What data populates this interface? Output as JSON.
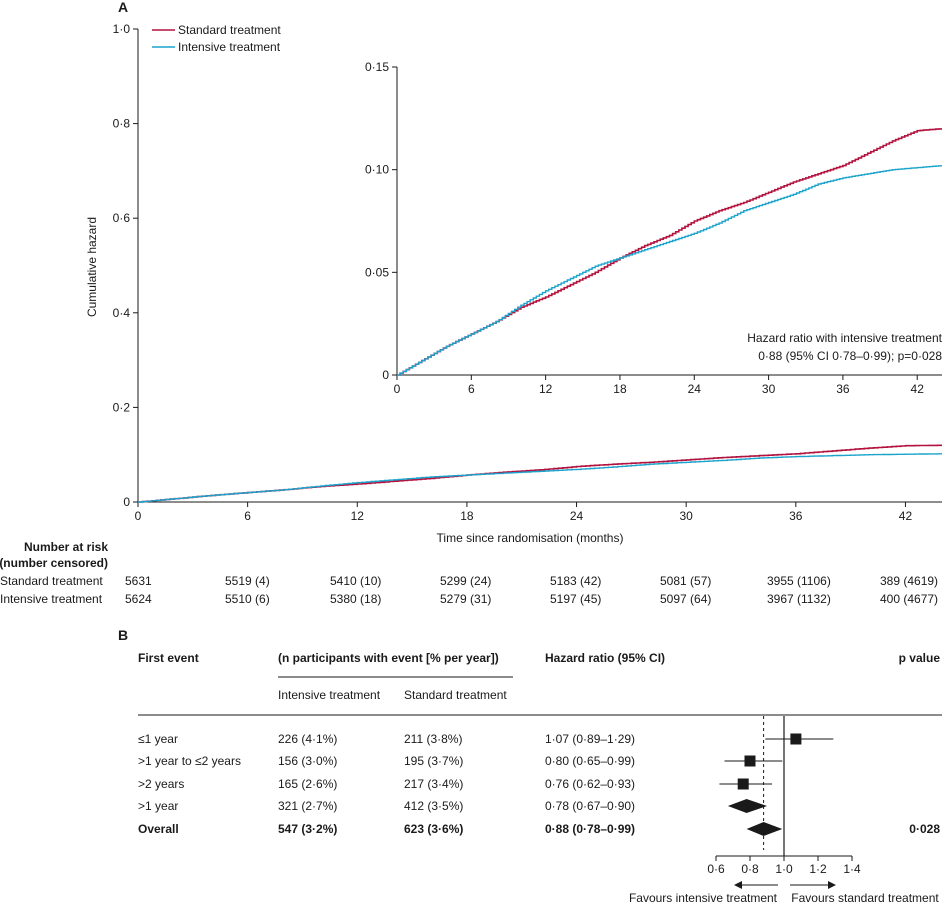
{
  "colors": {
    "standard": "#b3123f",
    "intensive": "#1ba3cc",
    "ink": "#1a1a1a"
  },
  "panel_a": {
    "label": "A",
    "legend": [
      "Standard treatment",
      "Intensive treatment"
    ],
    "inset_note": {
      "line1": "Hazard ratio with intensive treatment",
      "line2": "0·88 (95% CI 0·78–0·99); p=0·028"
    }
  },
  "risk_table": {
    "title_line1": "Number at risk",
    "title_line2": "(number censored)",
    "rows": [
      {
        "name": "Standard treatment",
        "values": [
          "5631",
          "5519 (4)",
          "5410 (10)",
          "5299 (24)",
          "5183 (42)",
          "5081 (57)",
          "3955 (1106)",
          "389 (4619)"
        ]
      },
      {
        "name": "Intensive treatment",
        "values": [
          "5624",
          "5510 (6)",
          "5380 (18)",
          "5279 (31)",
          "5197 (45)",
          "5097 (64)",
          "3967 (1132)",
          "400 (4677)"
        ]
      }
    ]
  },
  "chart_data": [
    {
      "type": "line",
      "id": "main",
      "title": "",
      "xlabel": "Time since randomisation (months)",
      "ylabel": "Cumulative hazard",
      "xlim": [
        0,
        44
      ],
      "ylim": [
        0,
        1.0
      ],
      "xticks": [
        0,
        6,
        12,
        18,
        24,
        30,
        36,
        42
      ],
      "xtick_labels": [
        "0",
        "6",
        "12",
        "18",
        "24",
        "30",
        "36",
        "42"
      ],
      "yticks": [
        0,
        0.2,
        0.4,
        0.6,
        0.8,
        1.0
      ],
      "ytick_labels": [
        "0",
        "0·2",
        "0·4",
        "0·6",
        "0·8",
        "1·0"
      ],
      "x": [
        0,
        2,
        4,
        6,
        8,
        10,
        12,
        14,
        16,
        18,
        20,
        22,
        24,
        26,
        28,
        30,
        32,
        34,
        36,
        38,
        40,
        42,
        44
      ],
      "series": [
        {
          "name": "Standard treatment",
          "values": [
            0,
            0.007,
            0.014,
            0.02,
            0.026,
            0.033,
            0.038,
            0.044,
            0.05,
            0.057,
            0.063,
            0.068,
            0.075,
            0.08,
            0.084,
            0.089,
            0.094,
            0.098,
            0.102,
            0.108,
            0.114,
            0.119,
            0.12
          ]
        },
        {
          "name": "Intensive treatment",
          "values": [
            0,
            0.007,
            0.014,
            0.02,
            0.026,
            0.034,
            0.041,
            0.047,
            0.053,
            0.057,
            0.061,
            0.065,
            0.069,
            0.074,
            0.08,
            0.084,
            0.088,
            0.093,
            0.096,
            0.098,
            0.1,
            0.101,
            0.102
          ]
        }
      ]
    },
    {
      "type": "line",
      "id": "inset",
      "xlim": [
        0,
        44
      ],
      "ylim": [
        0,
        0.15
      ],
      "xticks": [
        0,
        6,
        12,
        18,
        24,
        30,
        36,
        42
      ],
      "xtick_labels": [
        "0",
        "6",
        "12",
        "18",
        "24",
        "30",
        "36",
        "42"
      ],
      "yticks": [
        0,
        0.05,
        0.1,
        0.15
      ],
      "ytick_labels": [
        "0",
        "0·05",
        "0·10",
        "0·15"
      ],
      "note": "Zoomed view of the same two series"
    },
    {
      "type": "forest",
      "id": "forest",
      "panel_label": "B",
      "headers": {
        "first_event": "First event",
        "participants": "(n participants with event [% per year])",
        "intensive": "Intensive treatment",
        "standard": "Standard treatment",
        "hr": "Hazard ratio (95% CI)",
        "p": "p value"
      },
      "rows": [
        {
          "label": "≤1 year",
          "intensive": "226 (4·1%)",
          "standard": "211 (3·8%)",
          "hr_text": "1·07 (0·89–1·29)",
          "hr": 1.07,
          "lo": 0.89,
          "hi": 1.29,
          "marker": "square",
          "bold": false,
          "p": ""
        },
        {
          "label": ">1 year to ≤2 years",
          "intensive": "156 (3·0%)",
          "standard": "195 (3·7%)",
          "hr_text": "0·80 (0·65–0·99)",
          "hr": 0.8,
          "lo": 0.65,
          "hi": 0.99,
          "marker": "square",
          "bold": false,
          "p": ""
        },
        {
          "label": ">2 years",
          "intensive": "165 (2·6%)",
          "standard": "217 (3·4%)",
          "hr_text": "0·76 (0·62–0·93)",
          "hr": 0.76,
          "lo": 0.62,
          "hi": 0.93,
          "marker": "square",
          "bold": false,
          "p": ""
        },
        {
          "label": ">1 year",
          "intensive": "321 (2·7%)",
          "standard": "412 (3·5%)",
          "hr_text": "0·78 (0·67–0·90)",
          "hr": 0.78,
          "lo": 0.67,
          "hi": 0.9,
          "marker": "diamond",
          "bold": false,
          "p": ""
        },
        {
          "label": "Overall",
          "intensive": "547 (3·2%)",
          "standard": "623 (3·6%)",
          "hr_text": "0·88 (0·78–0·99)",
          "hr": 0.88,
          "lo": 0.78,
          "hi": 0.99,
          "marker": "diamond",
          "bold": true,
          "p": "0·028"
        }
      ],
      "xlim": [
        0.6,
        1.4
      ],
      "xticks": [
        0.6,
        0.8,
        1.0,
        1.2,
        1.4
      ],
      "xtick_labels": [
        "0·6",
        "0·8",
        "1·0",
        "1·2",
        "1·4"
      ],
      "reference_line": 1.0,
      "overall_line": 0.88,
      "favours_left": "Favours intensive treatment",
      "favours_right": "Favours standard treatment"
    }
  ]
}
